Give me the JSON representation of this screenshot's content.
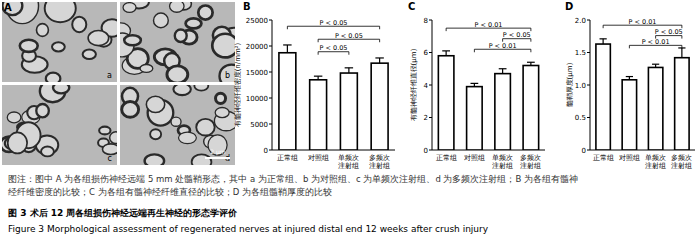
{
  "panel_a": {
    "label": "A",
    "sublabels": [
      "a",
      "b",
      "c",
      "d"
    ],
    "scale_bar": "2 μm"
  },
  "chart_data": [
    {
      "type": "bar",
      "title": "B",
      "ylabel": "有髓神经纤维密度(n/mm²)",
      "categories": [
        "正常组",
        "对照组",
        "单频次注射组",
        "多频次注射组"
      ],
      "values": [
        18700,
        13500,
        14800,
        16700
      ],
      "errors": [
        1500,
        700,
        1000,
        1000
      ],
      "color": "#ffffff",
      "ylim": [
        0,
        25000
      ],
      "yticks": [
        0,
        5000,
        10000,
        15000,
        20000,
        25000
      ],
      "annotations": [
        {
          "text": "P < 0.05",
          "from": 0,
          "to": 3,
          "y": 23800
        },
        {
          "text": "P < 0.05",
          "from": 1,
          "to": 3,
          "y": 21300
        },
        {
          "text": "P < 0.05",
          "from": 1,
          "to": 2,
          "y": 18900
        }
      ]
    },
    {
      "type": "bar",
      "title": "C",
      "ylabel": "有髓神经纤维直径(μm)",
      "categories": [
        "正常组",
        "对照组",
        "单频次注射组",
        "多频次注射组"
      ],
      "values": [
        5.8,
        3.9,
        4.7,
        5.2
      ],
      "errors": [
        0.3,
        0.2,
        0.3,
        0.2
      ],
      "color": "#ffffff",
      "ylim": [
        0,
        8
      ],
      "yticks": [
        0,
        2,
        4,
        6,
        8
      ],
      "annotations": [
        {
          "text": "P < 0.01",
          "from": 0,
          "to": 3,
          "y": 7.5
        },
        {
          "text": "P < 0.05",
          "from": 2,
          "to": 3,
          "y": 6.85
        },
        {
          "text": "P < 0.01",
          "from": 1,
          "to": 3,
          "y": 6.2
        }
      ]
    },
    {
      "type": "bar",
      "title": "D",
      "ylabel": "髓鞘厚度(μm)",
      "categories": [
        "正常组",
        "对照组",
        "单频次注射组",
        "多频次注射组"
      ],
      "values": [
        1.63,
        1.08,
        1.27,
        1.42
      ],
      "errors": [
        0.08,
        0.05,
        0.05,
        0.15
      ],
      "color": "#ffffff",
      "ylim": [
        0,
        2.0
      ],
      "yticks": [
        0,
        0.5,
        {
          "value": 1,
          "label": "1.0"
        },
        1.5,
        {
          "value": 2,
          "label": "2.0"
        }
      ],
      "annotations": [
        {
          "text": "P < 0.01",
          "from": 0,
          "to": 3,
          "y": 1.92
        },
        {
          "text": "P < 0.05",
          "from": 2,
          "to": 3,
          "y": 1.76
        },
        {
          "text": "P < 0.01",
          "from": 1,
          "to": 3,
          "y": 1.61
        }
      ]
    }
  ],
  "caption": {
    "note_lines": [
      "图注：图中 A 为各组损伤神经远端 5 mm 处髓鞘形态，其中 a 为正常组、b 为对照组、c 为单频次注射组、d 为多频次注射组；B 为各组有髓神",
      "经纤维密度的比较；C 为各组有髓神经纤维直径的比较；D 为各组髓鞘厚度的比较"
    ],
    "title_zh": "图 3   术后 12 周各组损伤神经远端再生神经的形态学评价",
    "title_en": "Figure 3   Morphological assessment of regenerated nerves at injured distal end 12 weeks after crush injury"
  }
}
